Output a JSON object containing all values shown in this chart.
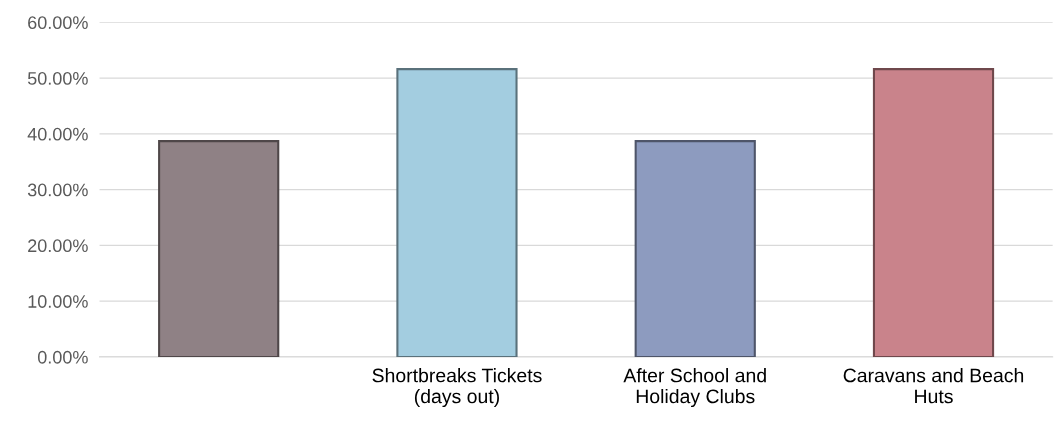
{
  "chart_data": {
    "type": "bar",
    "categories": [
      null,
      "Shortbreaks Tickets\n(days out)",
      "After School and\nHoliday Clubs",
      "Caravans and Beach\nHuts"
    ],
    "values": [
      38.7,
      51.6,
      38.7,
      51.6
    ],
    "colors": [
      "#8f8185",
      "#a3cde0",
      "#8d9bbf",
      "#c9838b"
    ],
    "ylim": [
      0,
      60
    ],
    "yticks": [
      {
        "value": 0,
        "label": "0.00%"
      },
      {
        "value": 10,
        "label": "10.00%"
      },
      {
        "value": 20,
        "label": "20.00%"
      },
      {
        "value": 30,
        "label": "30.00%"
      },
      {
        "value": 40,
        "label": "40.00%"
      },
      {
        "value": 50,
        "label": "50.00%"
      },
      {
        "value": 60,
        "label": "60.00%"
      }
    ],
    "grid": "y",
    "legend": false
  }
}
